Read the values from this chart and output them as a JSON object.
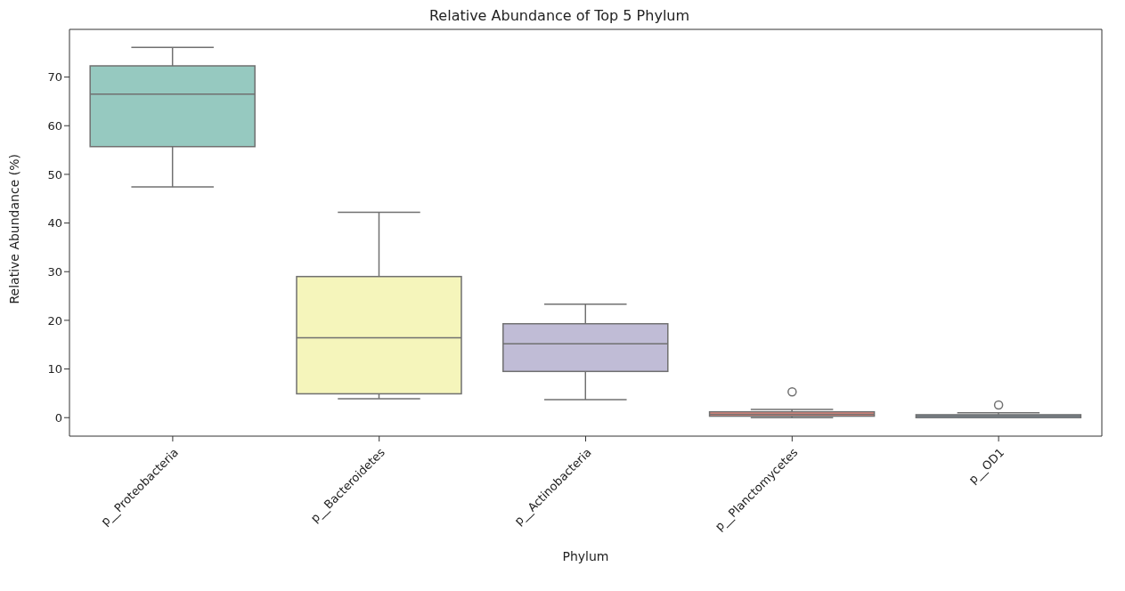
{
  "chart_data": {
    "type": "box",
    "title": "Relative Abundance of Top 5 Phylum",
    "xlabel": "Phylum",
    "ylabel": "Relative Abundance (%)",
    "categories": [
      "p__Proteobacteria",
      "p__Bacteroidetes",
      "p__Actinobacteria",
      "p__Planctomycetes",
      "p__OD1"
    ],
    "colors": [
      "#96c9c0",
      "#f5f5bb",
      "#c0bcd6",
      "#e8877c",
      "#88adc9"
    ],
    "boxes": [
      {
        "low": 47.4,
        "q1": 55.7,
        "median": 66.5,
        "q3": 72.3,
        "high": 76.1
      },
      {
        "low": 3.9,
        "q1": 4.9,
        "median": 16.4,
        "q3": 29.0,
        "high": 42.2
      },
      {
        "low": 3.7,
        "q1": 9.5,
        "median": 15.2,
        "q3": 19.3,
        "high": 23.3
      },
      {
        "low": 0.0,
        "q1": 0.3,
        "median": 0.7,
        "q3": 1.2,
        "high": 1.7,
        "outliers": [
          5.3
        ]
      },
      {
        "low": 0.0,
        "q1": 0.0,
        "median": 0.3,
        "q3": 0.6,
        "high": 1.0,
        "outliers": [
          2.6
        ]
      }
    ],
    "ylim": [
      -3.8,
      79.8
    ],
    "yticks": [
      0,
      10,
      20,
      30,
      40,
      50,
      60,
      70
    ]
  }
}
